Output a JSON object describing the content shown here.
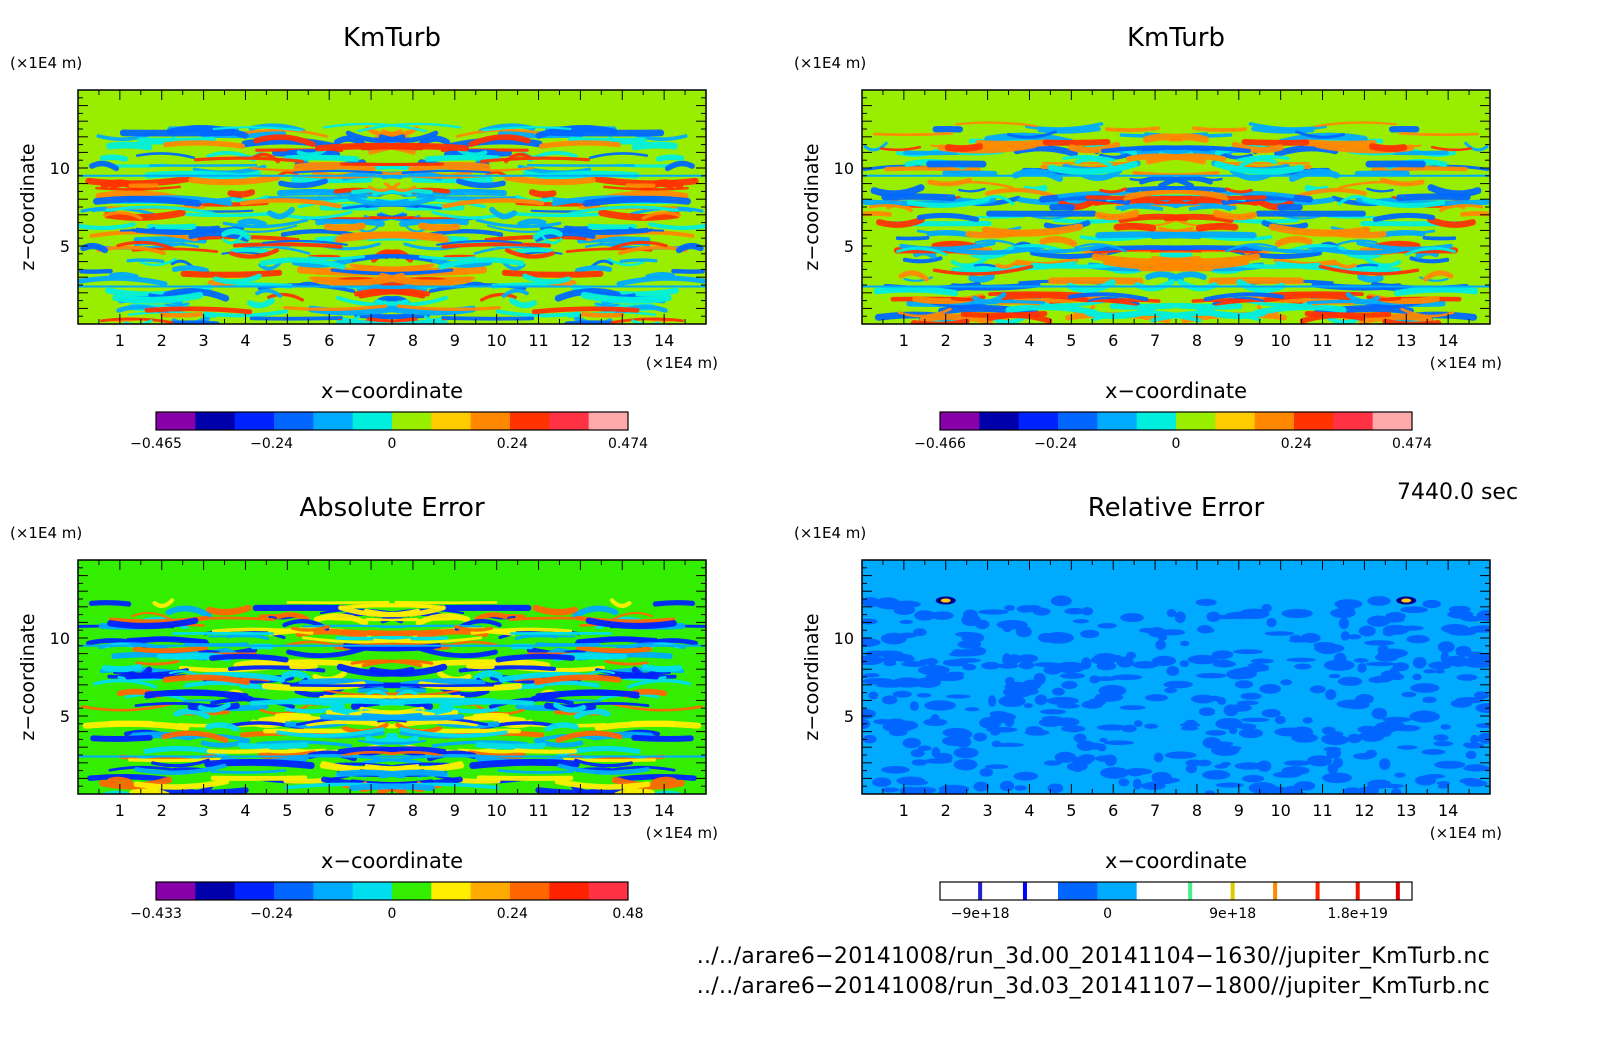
{
  "chart_data": [
    {
      "type": "heatmap",
      "title": "KmTurb",
      "xlabel": "x−coordinate",
      "ylabel": "z−coordinate",
      "x_unit": "(×1E4 m)",
      "y_unit": "(×1E4 m)",
      "x_ticks": [
        "1",
        "2",
        "3",
        "4",
        "5",
        "6",
        "7",
        "8",
        "9",
        "10",
        "11",
        "12",
        "13",
        "14"
      ],
      "y_ticks": [
        "5",
        "10"
      ],
      "xlim": [
        0,
        15
      ],
      "ylim": [
        0,
        15
      ],
      "colorbar": {
        "labels": [
          "−0.465",
          "−0.24",
          "0",
          "0.24",
          "0.474"
        ],
        "colors": [
          "#8800aa",
          "#0000aa",
          "#0022ff",
          "#0066ff",
          "#00aaff",
          "#00eedd",
          "#99ee00",
          "#ffcc00",
          "#ff8800",
          "#ff3300",
          "#ff3344",
          "#ffaaaa"
        ]
      },
      "palette": [
        "#99ee00",
        "#00eedd",
        "#00aaff",
        "#ff8800",
        "#ff3300",
        "#0066ff"
      ]
    },
    {
      "type": "heatmap",
      "title": "KmTurb",
      "xlabel": "x−coordinate",
      "ylabel": "z−coordinate",
      "x_unit": "(×1E4 m)",
      "y_unit": "(×1E4 m)",
      "x_ticks": [
        "1",
        "2",
        "3",
        "4",
        "5",
        "6",
        "7",
        "8",
        "9",
        "10",
        "11",
        "12",
        "13",
        "14"
      ],
      "y_ticks": [
        "5",
        "10"
      ],
      "xlim": [
        0,
        15
      ],
      "ylim": [
        0,
        15
      ],
      "colorbar": {
        "labels": [
          "−0.466",
          "−0.24",
          "0",
          "0.24",
          "0.474"
        ],
        "colors": [
          "#8800aa",
          "#0000aa",
          "#0022ff",
          "#0066ff",
          "#00aaff",
          "#00eedd",
          "#99ee00",
          "#ffcc00",
          "#ff8800",
          "#ff3300",
          "#ff3344",
          "#ffaaaa"
        ]
      },
      "palette": [
        "#99ee00",
        "#00eedd",
        "#00aaff",
        "#ff8800",
        "#ff3300",
        "#0066ff"
      ]
    },
    {
      "type": "heatmap",
      "title": "Absolute Error",
      "xlabel": "x−coordinate",
      "ylabel": "z−coordinate",
      "x_unit": "(×1E4 m)",
      "y_unit": "(×1E4 m)",
      "x_ticks": [
        "1",
        "2",
        "3",
        "4",
        "5",
        "6",
        "7",
        "8",
        "9",
        "10",
        "11",
        "12",
        "13",
        "14"
      ],
      "y_ticks": [
        "5",
        "10"
      ],
      "xlim": [
        0,
        15
      ],
      "ylim": [
        0,
        15
      ],
      "colorbar": {
        "labels": [
          "−0.433",
          "−0.24",
          "0",
          "0.24",
          "0.48"
        ],
        "colors": [
          "#8800aa",
          "#0000aa",
          "#0022ff",
          "#0066ff",
          "#00aaff",
          "#00ddee",
          "#33ee00",
          "#ffee00",
          "#ffaa00",
          "#ff6600",
          "#ff2200",
          "#ff3344"
        ]
      },
      "palette": [
        "#33ee00",
        "#00ddee",
        "#00aaff",
        "#ffee00",
        "#ff6600",
        "#0022ff"
      ]
    },
    {
      "type": "heatmap",
      "title": "Relative Error",
      "xlabel": "x−coordinate",
      "ylabel": "z−coordinate",
      "x_unit": "(×1E4 m)",
      "y_unit": "(×1E4 m)",
      "x_ticks": [
        "1",
        "2",
        "3",
        "4",
        "5",
        "6",
        "7",
        "8",
        "9",
        "10",
        "11",
        "12",
        "13",
        "14"
      ],
      "y_ticks": [
        "5",
        "10"
      ],
      "xlim": [
        0,
        15
      ],
      "ylim": [
        0,
        15
      ],
      "colorbar": {
        "labels": [
          "−9e+18",
          "0",
          "9e+18",
          "1.8e+19"
        ],
        "colors": [
          "#ffffff",
          "#ffffff",
          "#ffffff",
          "#0066ff",
          "#00aaff",
          "#ffffff",
          "#ffffff",
          "#ffffff",
          "#ffffff",
          "#ffffff",
          "#ffffff",
          "#ffffff"
        ]
      },
      "palette": [
        "#00aaff",
        "#0066ff"
      ]
    }
  ],
  "time_label": "7440.0 sec",
  "footer": [
    "../../arare6−20141008/run_3d.00_20141104−1630//jupiter_KmTurb.nc",
    "../../arare6−20141008/run_3d.03_20141107−1800//jupiter_KmTurb.nc"
  ]
}
